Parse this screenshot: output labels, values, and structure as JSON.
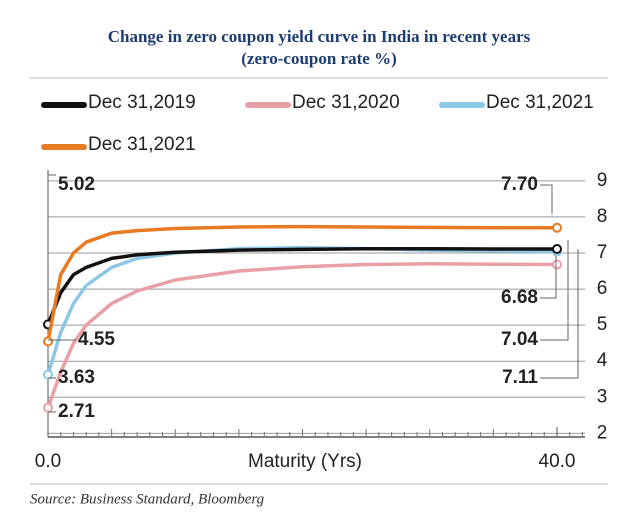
{
  "chart_data": {
    "type": "line",
    "title": "Change in zero coupon yield curve in India in recent years",
    "subtitle": "(zero-coupon rate %)",
    "x_label": "Maturity (Yrs)",
    "source": "Source: Business Standard, Bloomberg",
    "x": [
      0,
      1,
      2,
      3,
      5,
      7,
      10,
      15,
      20,
      25,
      30,
      35,
      40
    ],
    "series": [
      {
        "name": "Dec 31,2019",
        "color": "#111111",
        "values": [
          5.02,
          5.9,
          6.4,
          6.6,
          6.85,
          6.95,
          7.02,
          7.08,
          7.1,
          7.12,
          7.12,
          7.11,
          7.11
        ]
      },
      {
        "name": "Dec 31,2020",
        "color": "#e8a0a6",
        "values": [
          2.71,
          3.7,
          4.5,
          5.0,
          5.6,
          5.95,
          6.25,
          6.5,
          6.62,
          6.68,
          6.7,
          6.69,
          6.68
        ]
      },
      {
        "name": "Dec 31,2021",
        "color": "#8cc8e6",
        "values": [
          3.63,
          4.8,
          5.6,
          6.1,
          6.6,
          6.85,
          7.0,
          7.12,
          7.15,
          7.12,
          7.08,
          7.06,
          7.04
        ]
      },
      {
        "name": "Dec 31,2021",
        "color": "#e87a22",
        "values": [
          4.55,
          6.4,
          7.0,
          7.3,
          7.55,
          7.62,
          7.68,
          7.72,
          7.73,
          7.72,
          7.71,
          7.7,
          7.7
        ]
      }
    ],
    "annotations": [
      "5.02",
      "4.55",
      "3.63",
      "2.71",
      "7.70",
      "6.68",
      "7.04",
      "7.11"
    ],
    "xlim": [
      0,
      40
    ],
    "xticks": [
      {
        "value": 0,
        "label": "0.0"
      },
      {
        "value": 40,
        "label": "40.0"
      }
    ],
    "ylim": [
      1.9,
      9.3
    ],
    "yticks": [
      2,
      3,
      4,
      5,
      6,
      7,
      8,
      9
    ],
    "grid": true
  }
}
